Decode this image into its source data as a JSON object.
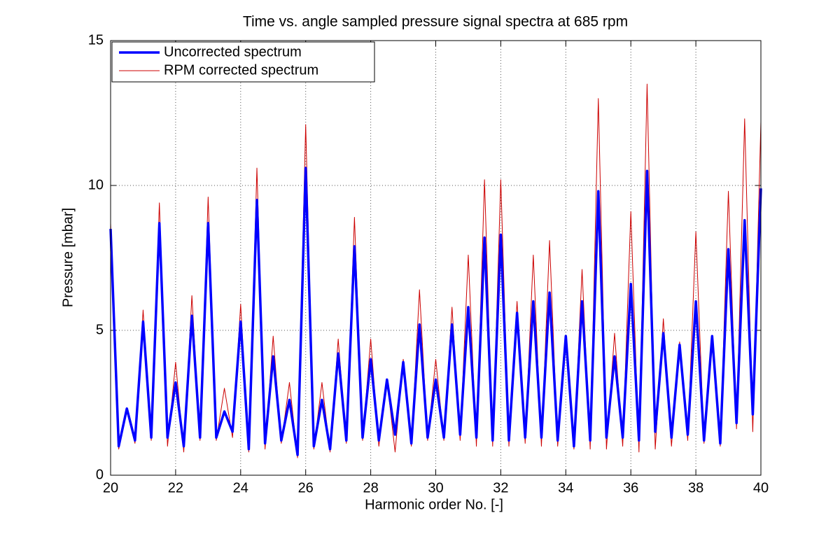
{
  "chart_data": {
    "type": "line",
    "title": "Time vs. angle sampled pressure signal spectra at 685 rpm",
    "xlabel": "Harmonic order No. [-]",
    "ylabel": "Pressure [mbar]",
    "x": [
      20,
      20.25,
      20.5,
      20.75,
      21,
      21.25,
      21.5,
      21.75,
      22,
      22.25,
      22.5,
      22.75,
      23,
      23.25,
      23.5,
      23.75,
      24,
      24.25,
      24.5,
      24.75,
      25,
      25.25,
      25.5,
      25.75,
      26,
      26.25,
      26.5,
      26.75,
      27,
      27.25,
      27.5,
      27.75,
      28,
      28.25,
      28.5,
      28.75,
      29,
      29.25,
      29.5,
      29.75,
      30,
      30.25,
      30.5,
      30.75,
      31,
      31.25,
      31.5,
      31.75,
      32,
      32.25,
      32.5,
      32.75,
      33,
      33.25,
      33.5,
      33.75,
      34,
      34.25,
      34.5,
      34.75,
      35,
      35.25,
      35.5,
      35.75,
      36,
      36.25,
      36.5,
      36.75,
      37,
      37.25,
      37.5,
      37.75,
      38,
      38.25,
      38.5,
      38.75,
      39,
      39.25,
      39.5,
      39.75,
      40
    ],
    "series": [
      {
        "name": "Uncorrected spectrum",
        "color": "#0000ff",
        "width": 3.5,
        "values": [
          8.5,
          1.0,
          2.3,
          1.2,
          5.3,
          1.3,
          8.7,
          1.3,
          3.2,
          1.0,
          5.5,
          1.3,
          8.7,
          1.3,
          2.2,
          1.5,
          5.3,
          0.9,
          9.5,
          1.1,
          4.1,
          1.2,
          2.6,
          0.7,
          10.6,
          1.0,
          2.6,
          0.9,
          4.2,
          1.2,
          7.9,
          1.3,
          4.0,
          1.2,
          3.3,
          1.4,
          3.9,
          1.1,
          5.2,
          1.3,
          3.3,
          1.3,
          5.2,
          1.4,
          5.8,
          1.3,
          8.2,
          1.2,
          8.3,
          1.2,
          5.6,
          1.3,
          6.0,
          1.3,
          6.3,
          1.2,
          4.8,
          1.0,
          6.0,
          1.2,
          9.8,
          1.3,
          4.1,
          1.3,
          6.6,
          1.2,
          10.5,
          1.5,
          4.9,
          1.3,
          4.5,
          1.4,
          6.0,
          1.2,
          4.8,
          1.1,
          7.8,
          1.8,
          8.8,
          2.1,
          9.9
        ]
      },
      {
        "name": "RPM corrected spectrum",
        "color": "#cc0000",
        "width": 1,
        "values": [
          8.7,
          0.9,
          2.3,
          1.1,
          5.7,
          1.2,
          9.4,
          1.0,
          3.9,
          0.8,
          6.2,
          1.2,
          9.6,
          1.2,
          3.0,
          1.3,
          5.9,
          0.8,
          10.6,
          0.9,
          4.8,
          1.1,
          3.2,
          0.6,
          12.1,
          0.9,
          3.2,
          0.8,
          4.7,
          1.1,
          8.9,
          1.2,
          4.7,
          1.0,
          3.3,
          0.8,
          4.0,
          1.0,
          6.4,
          1.2,
          4.0,
          1.2,
          5.8,
          1.2,
          7.6,
          1.0,
          10.2,
          1.0,
          10.2,
          1.0,
          6.0,
          1.1,
          7.6,
          1.0,
          8.1,
          1.0,
          4.8,
          0.9,
          7.1,
          0.9,
          13.0,
          0.9,
          4.9,
          1.0,
          9.1,
          0.8,
          13.5,
          0.9,
          5.4,
          1.0,
          4.6,
          1.2,
          8.4,
          1.1,
          4.6,
          1.0,
          9.8,
          1.6,
          12.3,
          1.5,
          12.2
        ]
      }
    ],
    "xlim": [
      20,
      40
    ],
    "xticks": [
      20,
      22,
      24,
      26,
      28,
      30,
      32,
      34,
      36,
      38,
      40
    ],
    "ylim": [
      0,
      15
    ],
    "yticks": [
      0,
      5,
      10,
      15
    ],
    "grid": true,
    "legend": "upper left"
  }
}
